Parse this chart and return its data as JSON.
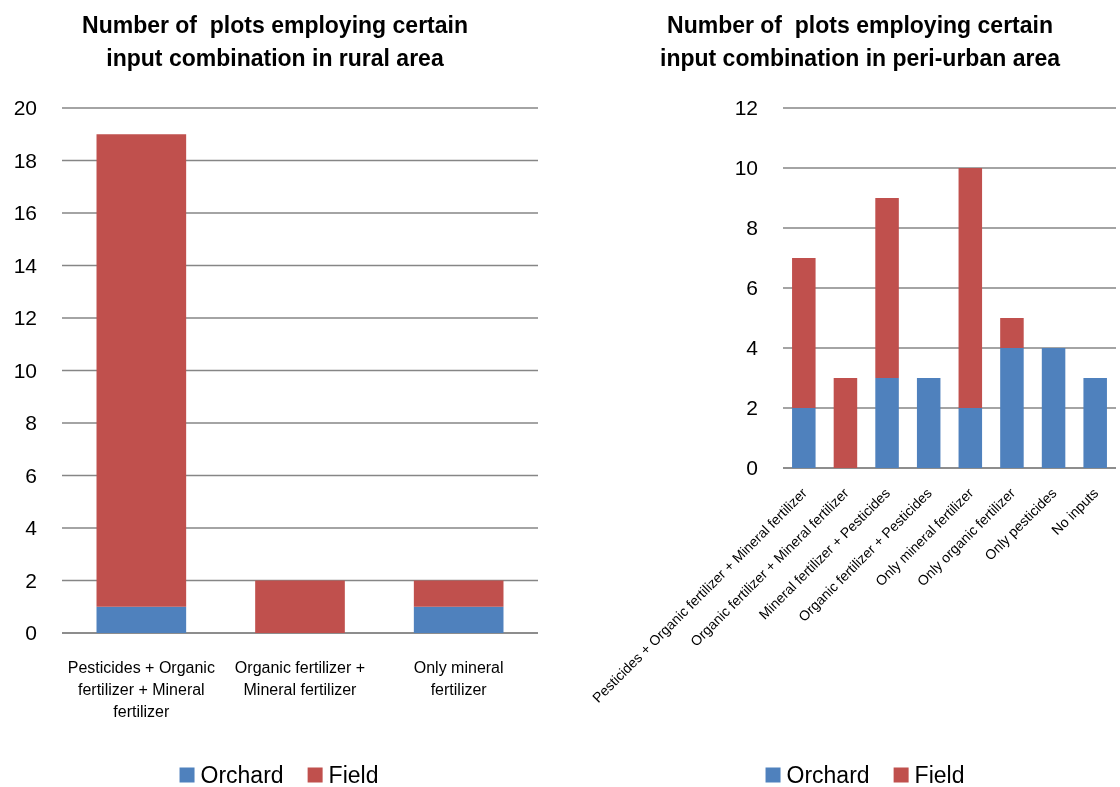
{
  "chart_data": [
    {
      "type": "bar",
      "stacked": true,
      "title": "Number of  plots employing certain input combination in rural area",
      "categories": [
        "Pesticides + Organic fertilizer + Mineral fertilizer",
        "Organic fertilizer + Mineral fertilizer",
        "Only mineral fertilizer"
      ],
      "series": [
        {
          "name": "Orchard",
          "color": "#4f81bd",
          "values": [
            1,
            0,
            1
          ]
        },
        {
          "name": "Field",
          "color": "#c0504d",
          "values": [
            18,
            2,
            1
          ]
        }
      ],
      "ylim": [
        0,
        20
      ],
      "yticks": [
        0,
        2,
        4,
        6,
        8,
        10,
        12,
        14,
        16,
        18,
        20
      ],
      "grid": "y",
      "legend": "bottom"
    },
    {
      "type": "bar",
      "stacked": true,
      "title": "Number of  plots employing certain input combination in peri-urban area",
      "categories": [
        "Pesticides + Organic fertilizer + Mineral fertilizer",
        "Organic fertilizer + Mineral fertilizer",
        "Mineral fertilizer + Pesticides",
        "Organic fertilizer + Pesticides",
        "Only mineral fertilizer",
        "Only organic fertilizer",
        "Only pesticides",
        "No inputs"
      ],
      "series": [
        {
          "name": "Orchard",
          "color": "#4f81bd",
          "values": [
            2,
            0,
            3,
            3,
            2,
            4,
            4,
            3
          ]
        },
        {
          "name": "Field",
          "color": "#c0504d",
          "values": [
            5,
            3,
            6,
            0,
            8,
            1,
            0,
            0
          ]
        }
      ],
      "ylim": [
        0,
        12
      ],
      "yticks": [
        0,
        2,
        4,
        6,
        8,
        10,
        12
      ],
      "grid": "y",
      "legend": "bottom"
    }
  ]
}
